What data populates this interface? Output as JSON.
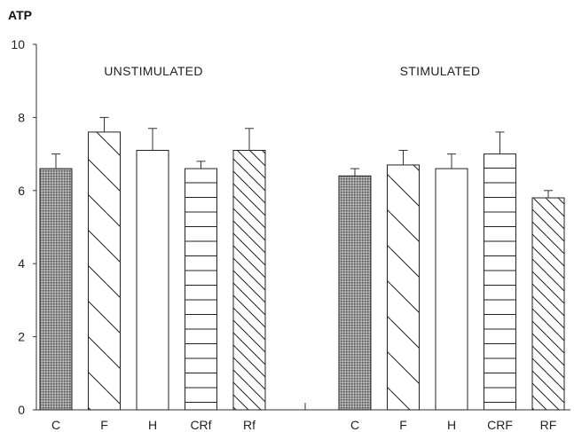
{
  "chart_data": {
    "type": "bar",
    "ylabel": "ATP",
    "ylim": [
      0,
      10
    ],
    "yticks": [
      0,
      2,
      4,
      6,
      8,
      10
    ],
    "grid": false,
    "groups": [
      {
        "label": "UNSTIMULATED",
        "bars": [
          {
            "category": "C",
            "value": 6.6,
            "error": 0.4,
            "pattern": "dotted"
          },
          {
            "category": "F",
            "value": 7.6,
            "error": 0.4,
            "pattern": "diagonal-down"
          },
          {
            "category": "H",
            "value": 7.1,
            "error": 0.6,
            "pattern": "none"
          },
          {
            "category": "CRf",
            "value": 6.6,
            "error": 0.2,
            "pattern": "horizontal"
          },
          {
            "category": "Rf",
            "value": 7.1,
            "error": 0.6,
            "pattern": "diagonal-down-dense"
          }
        ]
      },
      {
        "label": "STIMULATED",
        "bars": [
          {
            "category": "C",
            "value": 6.4,
            "error": 0.2,
            "pattern": "dotted"
          },
          {
            "category": "F",
            "value": 6.7,
            "error": 0.4,
            "pattern": "diagonal-down"
          },
          {
            "category": "H",
            "value": 6.6,
            "error": 0.4,
            "pattern": "none"
          },
          {
            "category": "CRF",
            "value": 7.0,
            "error": 0.6,
            "pattern": "horizontal"
          },
          {
            "category": "RF",
            "value": 5.8,
            "error": 0.2,
            "pattern": "diagonal-down-dense"
          }
        ]
      }
    ]
  }
}
